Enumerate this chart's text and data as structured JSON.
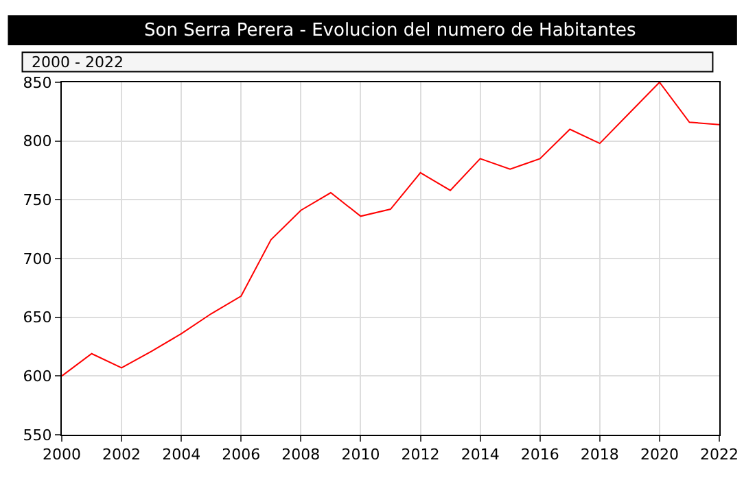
{
  "chart_data": {
    "type": "line",
    "title": "Son Serra Perera - Evolucion del numero de Habitantes",
    "subtitle": "2000 - 2022",
    "x": [
      2000,
      2001,
      2002,
      2003,
      2004,
      2005,
      2006,
      2007,
      2008,
      2009,
      2010,
      2011,
      2012,
      2013,
      2014,
      2015,
      2016,
      2017,
      2018,
      2019,
      2020,
      2021,
      2022
    ],
    "series": [
      {
        "color": "#ff0000",
        "values": [
          600,
          619,
          607,
          621,
          636,
          653,
          668,
          716,
          741,
          756,
          736,
          742,
          773,
          758,
          785,
          776,
          785,
          810,
          798,
          824,
          850,
          816,
          814
        ]
      }
    ],
    "xlim": [
      2000,
      2022
    ],
    "xticks": [
      2000,
      2002,
      2004,
      2006,
      2008,
      2010,
      2012,
      2014,
      2016,
      2018,
      2020,
      2022
    ],
    "ylim": [
      550,
      850
    ],
    "yticks": [
      550,
      600,
      650,
      700,
      750,
      800,
      850
    ],
    "grid": true,
    "line_style": "solid"
  }
}
